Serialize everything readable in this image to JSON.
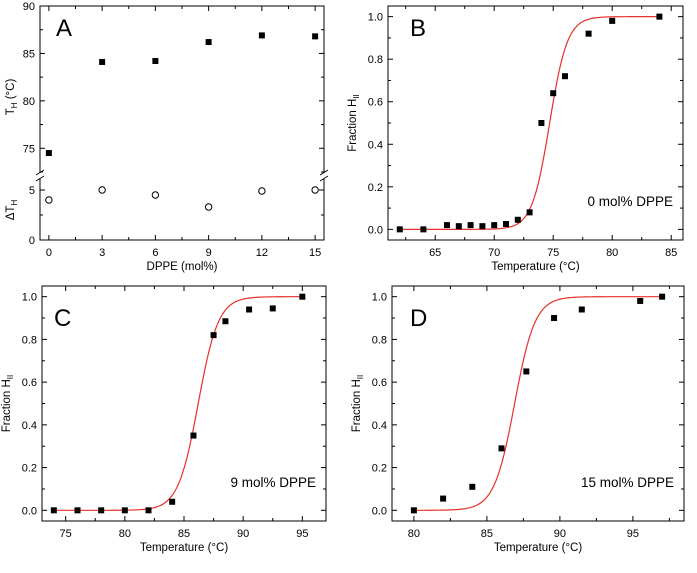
{
  "chart_data": [
    {
      "panel": "A",
      "type": "scatter",
      "xlabel": "DPPE (mol%)",
      "xlim": [
        -0.5,
        15.5
      ],
      "xticks": [
        0,
        3,
        6,
        9,
        12,
        15
      ],
      "upper": {
        "ylabel_main": "T",
        "ylabel_sub": "H",
        "ylabel_unit": " (°C)",
        "ylim": [
          72.5,
          90
        ],
        "yticks": [
          75,
          80,
          85,
          90
        ],
        "series": [
          {
            "name": "T_H",
            "marker": "filled-square",
            "x": [
              0,
              3,
              6,
              9,
              12,
              15
            ],
            "y": [
              74.5,
              84.1,
              84.2,
              86.2,
              86.9,
              86.8
            ]
          }
        ]
      },
      "lower": {
        "ylabel_main": "ΔT",
        "ylabel_sub": "H",
        "ylim": [
          0,
          6
        ],
        "yticks": [
          0,
          5
        ],
        "series": [
          {
            "name": "ΔT_H",
            "marker": "open-circle",
            "x": [
              0,
              3,
              6,
              9,
              12,
              15
            ],
            "y": [
              4.0,
              5.0,
              4.5,
              3.3,
              4.9,
              5.0
            ]
          }
        ]
      }
    },
    {
      "panel": "B",
      "type": "scatter",
      "xlabel": "Temperature (°C)",
      "ylabel_main": "Fraction H",
      "ylabel_sub": "II",
      "xlim": [
        61,
        86
      ],
      "ylim": [
        -0.05,
        1.05
      ],
      "xticks": [
        65,
        70,
        75,
        80,
        85
      ],
      "yticks": [
        0.0,
        0.2,
        0.4,
        0.6,
        0.8,
        1.0
      ],
      "annotation": "0 mol% DPPE",
      "fit": {
        "type": "sigmoid",
        "midpoint": 74.7,
        "slope": 0.75,
        "color": "#e8302a"
      },
      "series": [
        {
          "name": "Fraction HII",
          "marker": "filled-square",
          "x": [
            62,
            64,
            66,
            67,
            68,
            69,
            70,
            71,
            72,
            73,
            74,
            75,
            76,
            78,
            80,
            84
          ],
          "y": [
            0.0,
            0.0,
            0.02,
            0.015,
            0.02,
            0.015,
            0.02,
            0.025,
            0.045,
            0.08,
            0.5,
            0.64,
            0.72,
            0.92,
            0.98,
            1.0
          ]
        }
      ]
    },
    {
      "panel": "C",
      "type": "scatter",
      "xlabel": "Temperature (°C)",
      "ylabel_main": "Fraction H",
      "ylabel_sub": "II",
      "xlim": [
        73,
        97
      ],
      "ylim": [
        -0.05,
        1.05
      ],
      "xticks": [
        75,
        80,
        85,
        90,
        95
      ],
      "yticks": [
        0.0,
        0.2,
        0.4,
        0.6,
        0.8,
        1.0
      ],
      "annotation": "9 mol% DPPE",
      "fit": {
        "type": "sigmoid",
        "midpoint": 86.2,
        "slope": 0.85,
        "color": "#e8302a"
      },
      "series": [
        {
          "name": "Fraction HII",
          "marker": "filled-square",
          "x": [
            74,
            76,
            78,
            80,
            82,
            84,
            85.8,
            87.5,
            88.5,
            90.5,
            92.5,
            95
          ],
          "y": [
            0.0,
            0.0,
            0.0,
            0.0,
            0.0,
            0.04,
            0.35,
            0.82,
            0.885,
            0.94,
            0.945,
            1.0
          ]
        }
      ]
    },
    {
      "panel": "D",
      "type": "scatter",
      "xlabel": "Temperature (°C)",
      "ylabel_main": "Fraction H",
      "ylabel_sub": "II",
      "xlim": [
        78.5,
        98.5
      ],
      "ylim": [
        -0.05,
        1.05
      ],
      "xticks": [
        80,
        85,
        90,
        95
      ],
      "yticks": [
        0.0,
        0.2,
        0.4,
        0.6,
        0.8,
        1.0
      ],
      "annotation": "15 mol% DPPE",
      "fit": {
        "type": "sigmoid",
        "midpoint": 86.9,
        "slope": 0.7,
        "color": "#e8302a"
      },
      "series": [
        {
          "name": "Fraction HII",
          "marker": "filled-square",
          "x": [
            80,
            82,
            84,
            86,
            87.7,
            89.6,
            91.5,
            95.5,
            97
          ],
          "y": [
            0.0,
            0.055,
            0.11,
            0.29,
            0.65,
            0.9,
            0.94,
            0.98,
            1.0
          ]
        }
      ]
    }
  ]
}
